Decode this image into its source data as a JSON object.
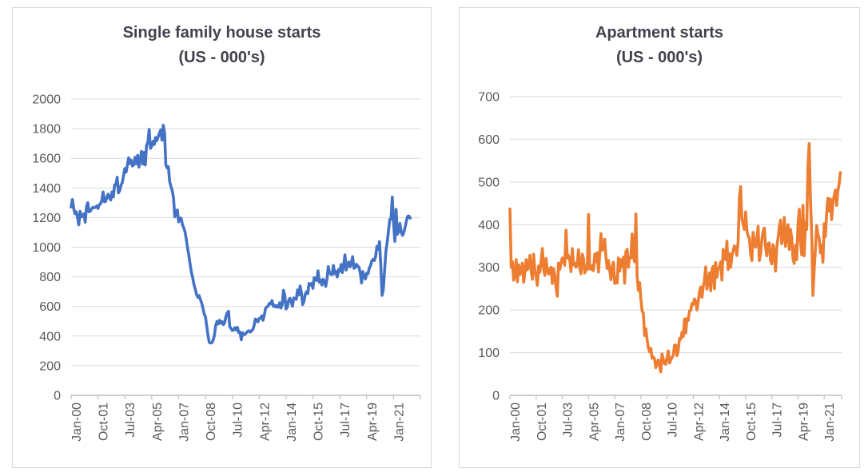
{
  "colors": {
    "gridline": "#d9d9d9",
    "axis_line": "#bfbfbf",
    "tick_label": "#595959",
    "title": "#41424c",
    "card_border": "#d9d9d9",
    "background": "#ffffff"
  },
  "chart_data": [
    {
      "type": "line",
      "title": "Single family house starts",
      "subtitle": "(US - 000's)",
      "color": "#4472C4",
      "ylim": [
        0,
        2000
      ],
      "y_step": 200,
      "y_tick_labels": [
        "0",
        "200",
        "400",
        "600",
        "800",
        "1000",
        "1200",
        "1400",
        "1600",
        "1800",
        "2000"
      ],
      "x_tick_labels": [
        "Jan-00",
        "Oct-01",
        "Jul-03",
        "Apr-05",
        "Jan-07",
        "Oct-08",
        "Jul-10",
        "Apr-12",
        "Jan-14",
        "Oct-15",
        "Jul-17",
        "Apr-19",
        "Jan-21"
      ],
      "x_tick_interval_months": 21,
      "x_domain_months": 273,
      "x_start": "Jan-2000",
      "x_frequency": "monthly",
      "grid": true,
      "legend": "none",
      "values": [
        1271,
        1322,
        1262,
        1226,
        1239,
        1201,
        1151,
        1242,
        1205,
        1218,
        1225,
        1169,
        1270,
        1300,
        1239,
        1243,
        1259,
        1269,
        1265,
        1270,
        1278,
        1262,
        1287,
        1293,
        1316,
        1373,
        1307,
        1309,
        1342,
        1358,
        1332,
        1318,
        1373,
        1339,
        1421,
        1421,
        1472,
        1366,
        1383,
        1418,
        1436,
        1484,
        1531,
        1506,
        1555,
        1603,
        1565,
        1587,
        1548,
        1557,
        1607,
        1563,
        1620,
        1540,
        1589,
        1647,
        1561,
        1640,
        1555,
        1688,
        1708,
        1795,
        1667,
        1682,
        1715,
        1693,
        1740,
        1718,
        1744,
        1770,
        1792,
        1723,
        1823,
        1772,
        1556,
        1535,
        1543,
        1443,
        1409,
        1381,
        1333,
        1205,
        1236,
        1251,
        1171,
        1197,
        1194,
        1151,
        1131,
        1103,
        1053,
        993,
        946,
        883,
        829,
        794,
        747,
        717,
        680,
        662,
        674,
        647,
        623,
        589,
        548,
        531,
        465,
        402,
        357,
        353,
        355,
        373,
        406,
        472,
        500,
        482,
        507,
        487,
        497,
        477,
        490,
        533,
        557,
        567,
        462,
        452,
        437,
        441,
        457,
        441,
        459,
        423,
        427,
        375,
        422,
        410,
        412,
        423,
        432,
        436,
        427,
        436,
        443,
        471,
        515,
        509,
        496,
        519,
        520,
        537,
        507,
        543,
        588,
        597,
        603,
        622,
        617,
        640,
        601,
        608,
        596,
        605,
        595,
        625,
        589,
        614,
        709,
        677,
        583,
        595,
        641,
        655,
        632,
        601,
        657,
        653,
        648,
        711,
        677,
        738,
        693,
        613,
        634,
        681,
        699,
        687,
        755,
        745,
        756,
        722,
        794,
        781,
        776,
        841,
        764,
        778,
        745,
        784,
        770,
        735,
        785,
        869,
        828,
        817,
        815,
        877,
        821,
        836,
        799,
        849,
        838,
        883,
        829,
        883,
        948,
        846,
        886,
        900,
        867,
        894,
        936,
        858,
        862,
        885,
        871,
        865,
        824,
        758,
        835,
        803,
        785,
        824,
        820,
        858,
        876,
        908,
        918,
        910,
        938,
        1005,
        987,
        1037,
        884,
        675,
        717,
        844,
        972,
        1033,
        1108,
        1187,
        1190,
        1338,
        1162,
        1040,
        1255,
        1087,
        1107,
        1160,
        1101,
        1080,
        1100,
        1133,
        1175,
        1208,
        1211,
        1196
      ]
    },
    {
      "type": "line",
      "title": "Apartment starts",
      "subtitle": "(US - 000's)",
      "color": "#ED7D31",
      "ylim": [
        0,
        700
      ],
      "y_step": 100,
      "y_tick_labels": [
        "0",
        "100",
        "200",
        "300",
        "400",
        "500",
        "600",
        "700"
      ],
      "x_tick_labels": [
        "Jan-00",
        "Oct-01",
        "Jul-03",
        "Apr-05",
        "Jan-07",
        "Oct-08",
        "Jul-10",
        "Apr-12",
        "Jan-14",
        "Oct-15",
        "Jul-17",
        "Apr-19",
        "Jan-21"
      ],
      "x_tick_interval_months": 21,
      "x_domain_months": 266,
      "x_start": "Jan-2000",
      "x_frequency": "monthly",
      "grid": true,
      "legend": "none",
      "values": [
        437,
        300,
        313,
        270,
        282,
        318,
        266,
        306,
        283,
        292,
        310,
        265,
        288,
        318,
        294,
        302,
        328,
        292,
        272,
        331,
        294,
        277,
        258,
        303,
        288,
        314,
        344,
        297,
        281,
        321,
        294,
        284,
        296,
        300,
        262,
        297,
        281,
        252,
        232,
        310,
        295,
        311,
        322,
        314,
        305,
        387,
        322,
        328,
        316,
        290,
        344,
        306,
        310,
        300,
        308,
        341,
        298,
        285,
        331,
        321,
        287,
        303,
        294,
        424,
        298,
        295,
        304,
        292,
        331,
        313,
        334,
        289,
        330,
        379,
        340,
        343,
        366,
        324,
        297,
        316,
        294,
        271,
        299,
        312,
        262,
        276,
        263,
        322,
        291,
        318,
        301,
        324,
        263,
        337,
        342,
        300,
        325,
        322,
        378,
        326,
        313,
        425,
        280,
        246,
        264,
        226,
        197,
        193,
        140,
        156,
        130,
        112,
        102,
        110,
        87,
        90,
        85,
        65,
        76,
        83,
        69,
        55,
        97,
        85,
        74,
        73,
        88,
        104,
        76,
        83,
        89,
        94,
        117,
        118,
        93,
        106,
        133,
        132,
        148,
        138,
        179,
        146,
        180,
        176,
        198,
        199,
        215,
        213,
        226,
        219,
        200,
        220,
        243,
        254,
        230,
        254,
        270,
        301,
        249,
        267,
        287,
        245,
        294,
        302,
        250,
        311,
        277,
        296,
        300,
        313,
        270,
        342,
        329,
        318,
        361,
        295,
        332,
        300,
        326,
        339,
        350,
        347,
        328,
        360,
        462,
        489,
        413,
        403,
        389,
        430,
        388,
        372,
        370,
        333,
        316,
        382,
        362,
        347,
        363,
        396,
        316,
        332,
        365,
        384,
        392,
        348,
        327,
        355,
        357,
        316,
        308,
        353,
        337,
        291,
        348,
        368,
        393,
        411,
        355,
        370,
        417,
        349,
        376,
        400,
        342,
        389,
        368,
        320,
        309,
        352,
        318,
        400,
        436,
        361,
        329,
        445,
        327,
        406,
        389,
        536,
        590,
        460,
        377,
        234,
        296,
        343,
        398,
        376,
        368,
        334,
        352,
        312,
        402,
        372,
        428,
        462,
        432,
        460,
        412,
        452,
        467,
        481,
        445,
        480,
        495,
        522
      ]
    }
  ]
}
